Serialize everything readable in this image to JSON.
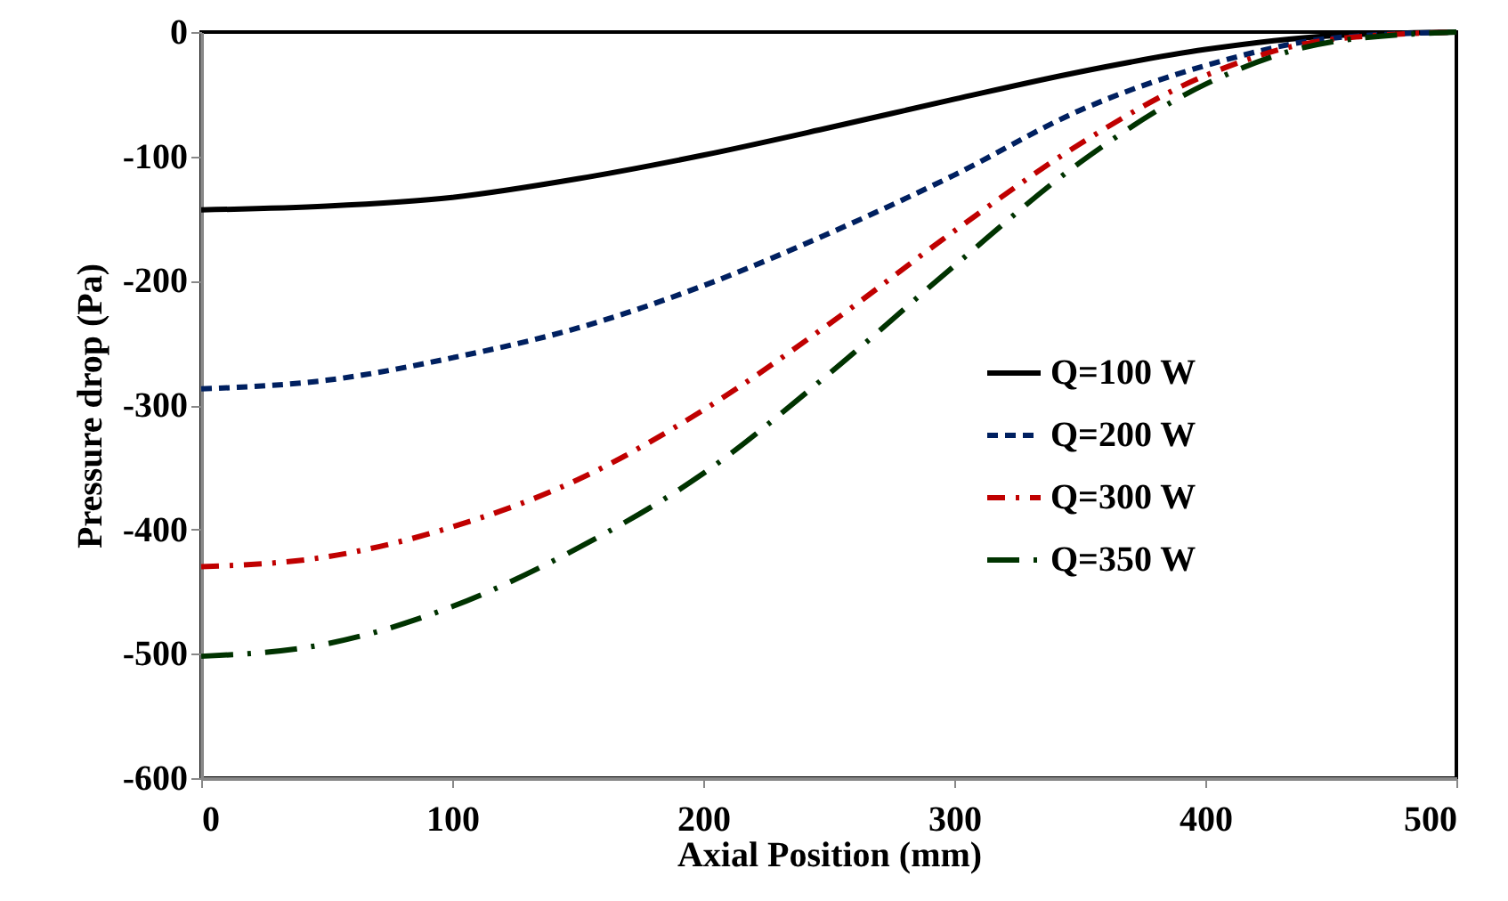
{
  "chart_data": {
    "type": "line",
    "xlabel": "Axial Position (mm)",
    "ylabel": "Pressure drop (Pa)",
    "x": [
      0,
      50,
      100,
      150,
      200,
      250,
      300,
      350,
      400,
      450,
      500
    ],
    "series": [
      {
        "name": "Q=100 W",
        "color": "#000000",
        "line_style": "solid",
        "values": [
          -143,
          -140,
          -133,
          -118,
          -99,
          -77,
          -54,
          -32,
          -14,
          -3,
          0
        ]
      },
      {
        "name": "Q=200 W",
        "color": "#002060",
        "line_style": "dashed",
        "values": [
          -287,
          -280,
          -262,
          -238,
          -204,
          -162,
          -115,
          -63,
          -27,
          -5,
          0
        ]
      },
      {
        "name": "Q=300 W",
        "color": "#c00000",
        "line_style": "dashdot",
        "values": [
          -430,
          -422,
          -398,
          -360,
          -304,
          -235,
          -160,
          -90,
          -35,
          -6,
          0
        ]
      },
      {
        "name": "Q=350 W",
        "color": "#003300",
        "line_style": "longdashdot",
        "values": [
          -502,
          -492,
          -462,
          -415,
          -355,
          -275,
          -188,
          -105,
          -42,
          -8,
          0
        ]
      }
    ],
    "xlim": [
      0,
      500
    ],
    "xticks": [
      0,
      100,
      200,
      300,
      400,
      500
    ],
    "ylim": [
      -600,
      0
    ],
    "yticks": [
      -600,
      -500,
      -400,
      -300,
      -200,
      -100,
      0
    ],
    "grid": false,
    "legend": "right",
    "marker": "none"
  }
}
